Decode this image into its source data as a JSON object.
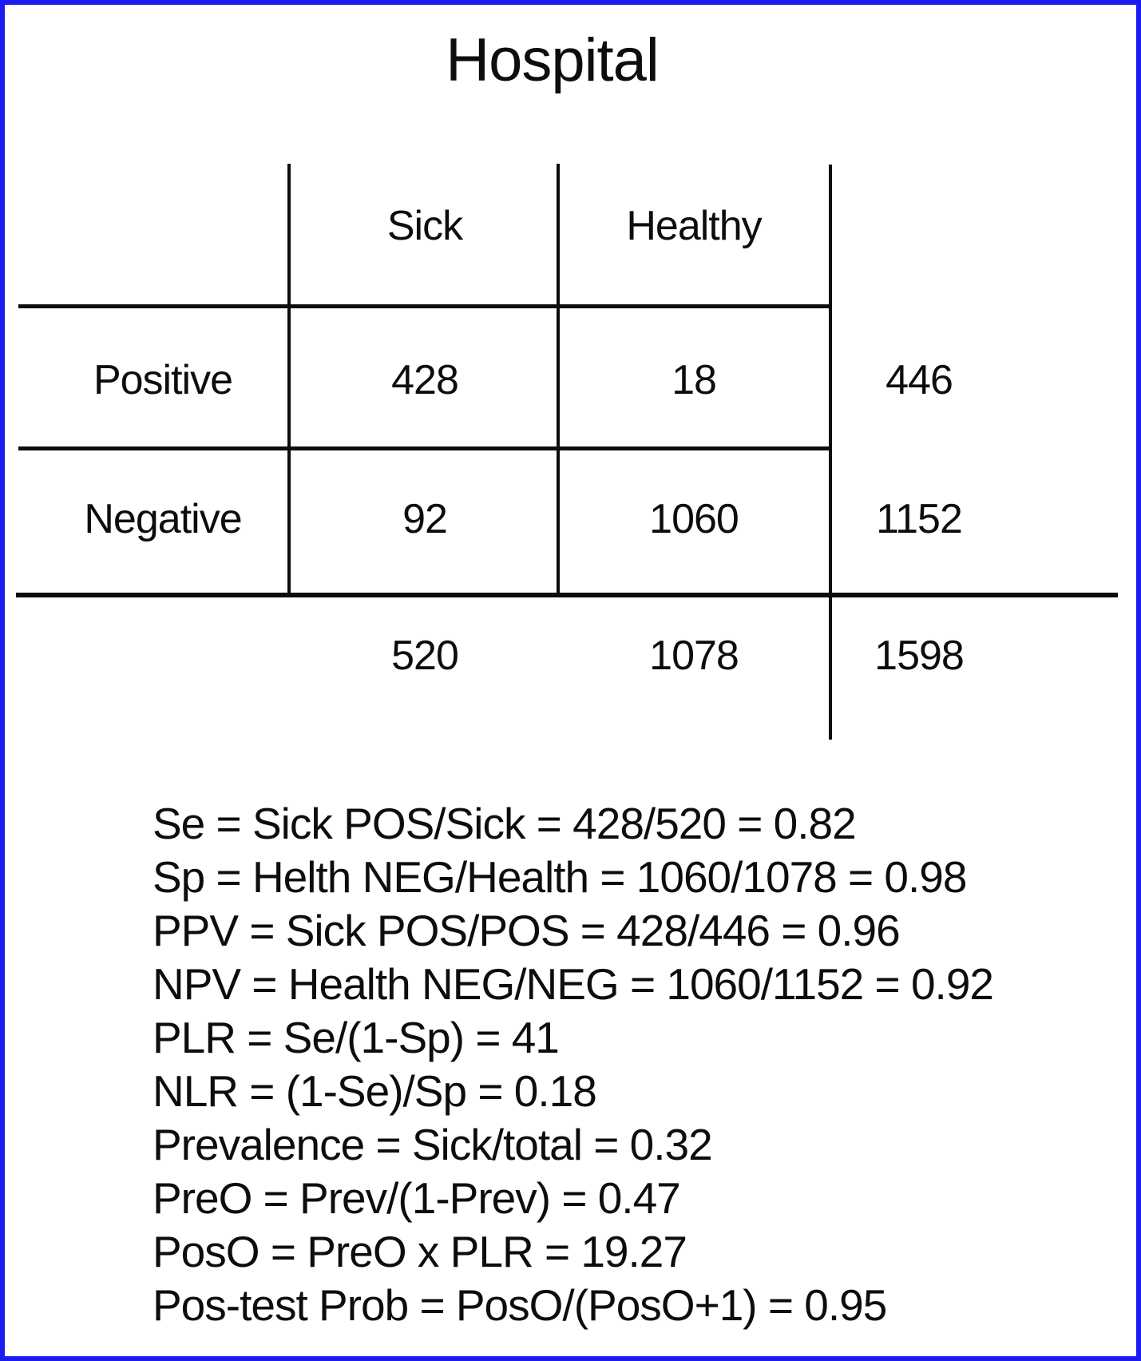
{
  "page": {
    "title": "Hospital",
    "border_color": "#1c1cf0",
    "ink_color": "#0d0d0d",
    "background_color": "#ffffff"
  },
  "table": {
    "col_headers": {
      "sick": "Sick",
      "healthy": "Healthy"
    },
    "rows": [
      {
        "label": "Positive",
        "sick": "428",
        "healthy": "18",
        "total": "446"
      },
      {
        "label": "Negative",
        "sick": "92",
        "healthy": "1060",
        "total": "1152"
      }
    ],
    "totals": {
      "sick": "520",
      "healthy": "1078",
      "grand": "1598"
    }
  },
  "formulas": [
    "Se = Sick POS/Sick = 428/520 = 0.82",
    "Sp = Helth NEG/Health = 1060/1078 = 0.98",
    "PPV = Sick POS/POS = 428/446 = 0.96",
    "NPV = Health NEG/NEG = 1060/1152 = 0.92",
    "PLR = Se/(1-Sp) = 41",
    "NLR = (1-Se)/Sp = 0.18",
    "Prevalence = Sick/total = 0.32",
    "PreO = Prev/(1-Prev) = 0.47",
    "PosO = PreO x PLR = 19.27",
    "Pos-test Prob = PosO/(PosO+1) = 0.95"
  ]
}
